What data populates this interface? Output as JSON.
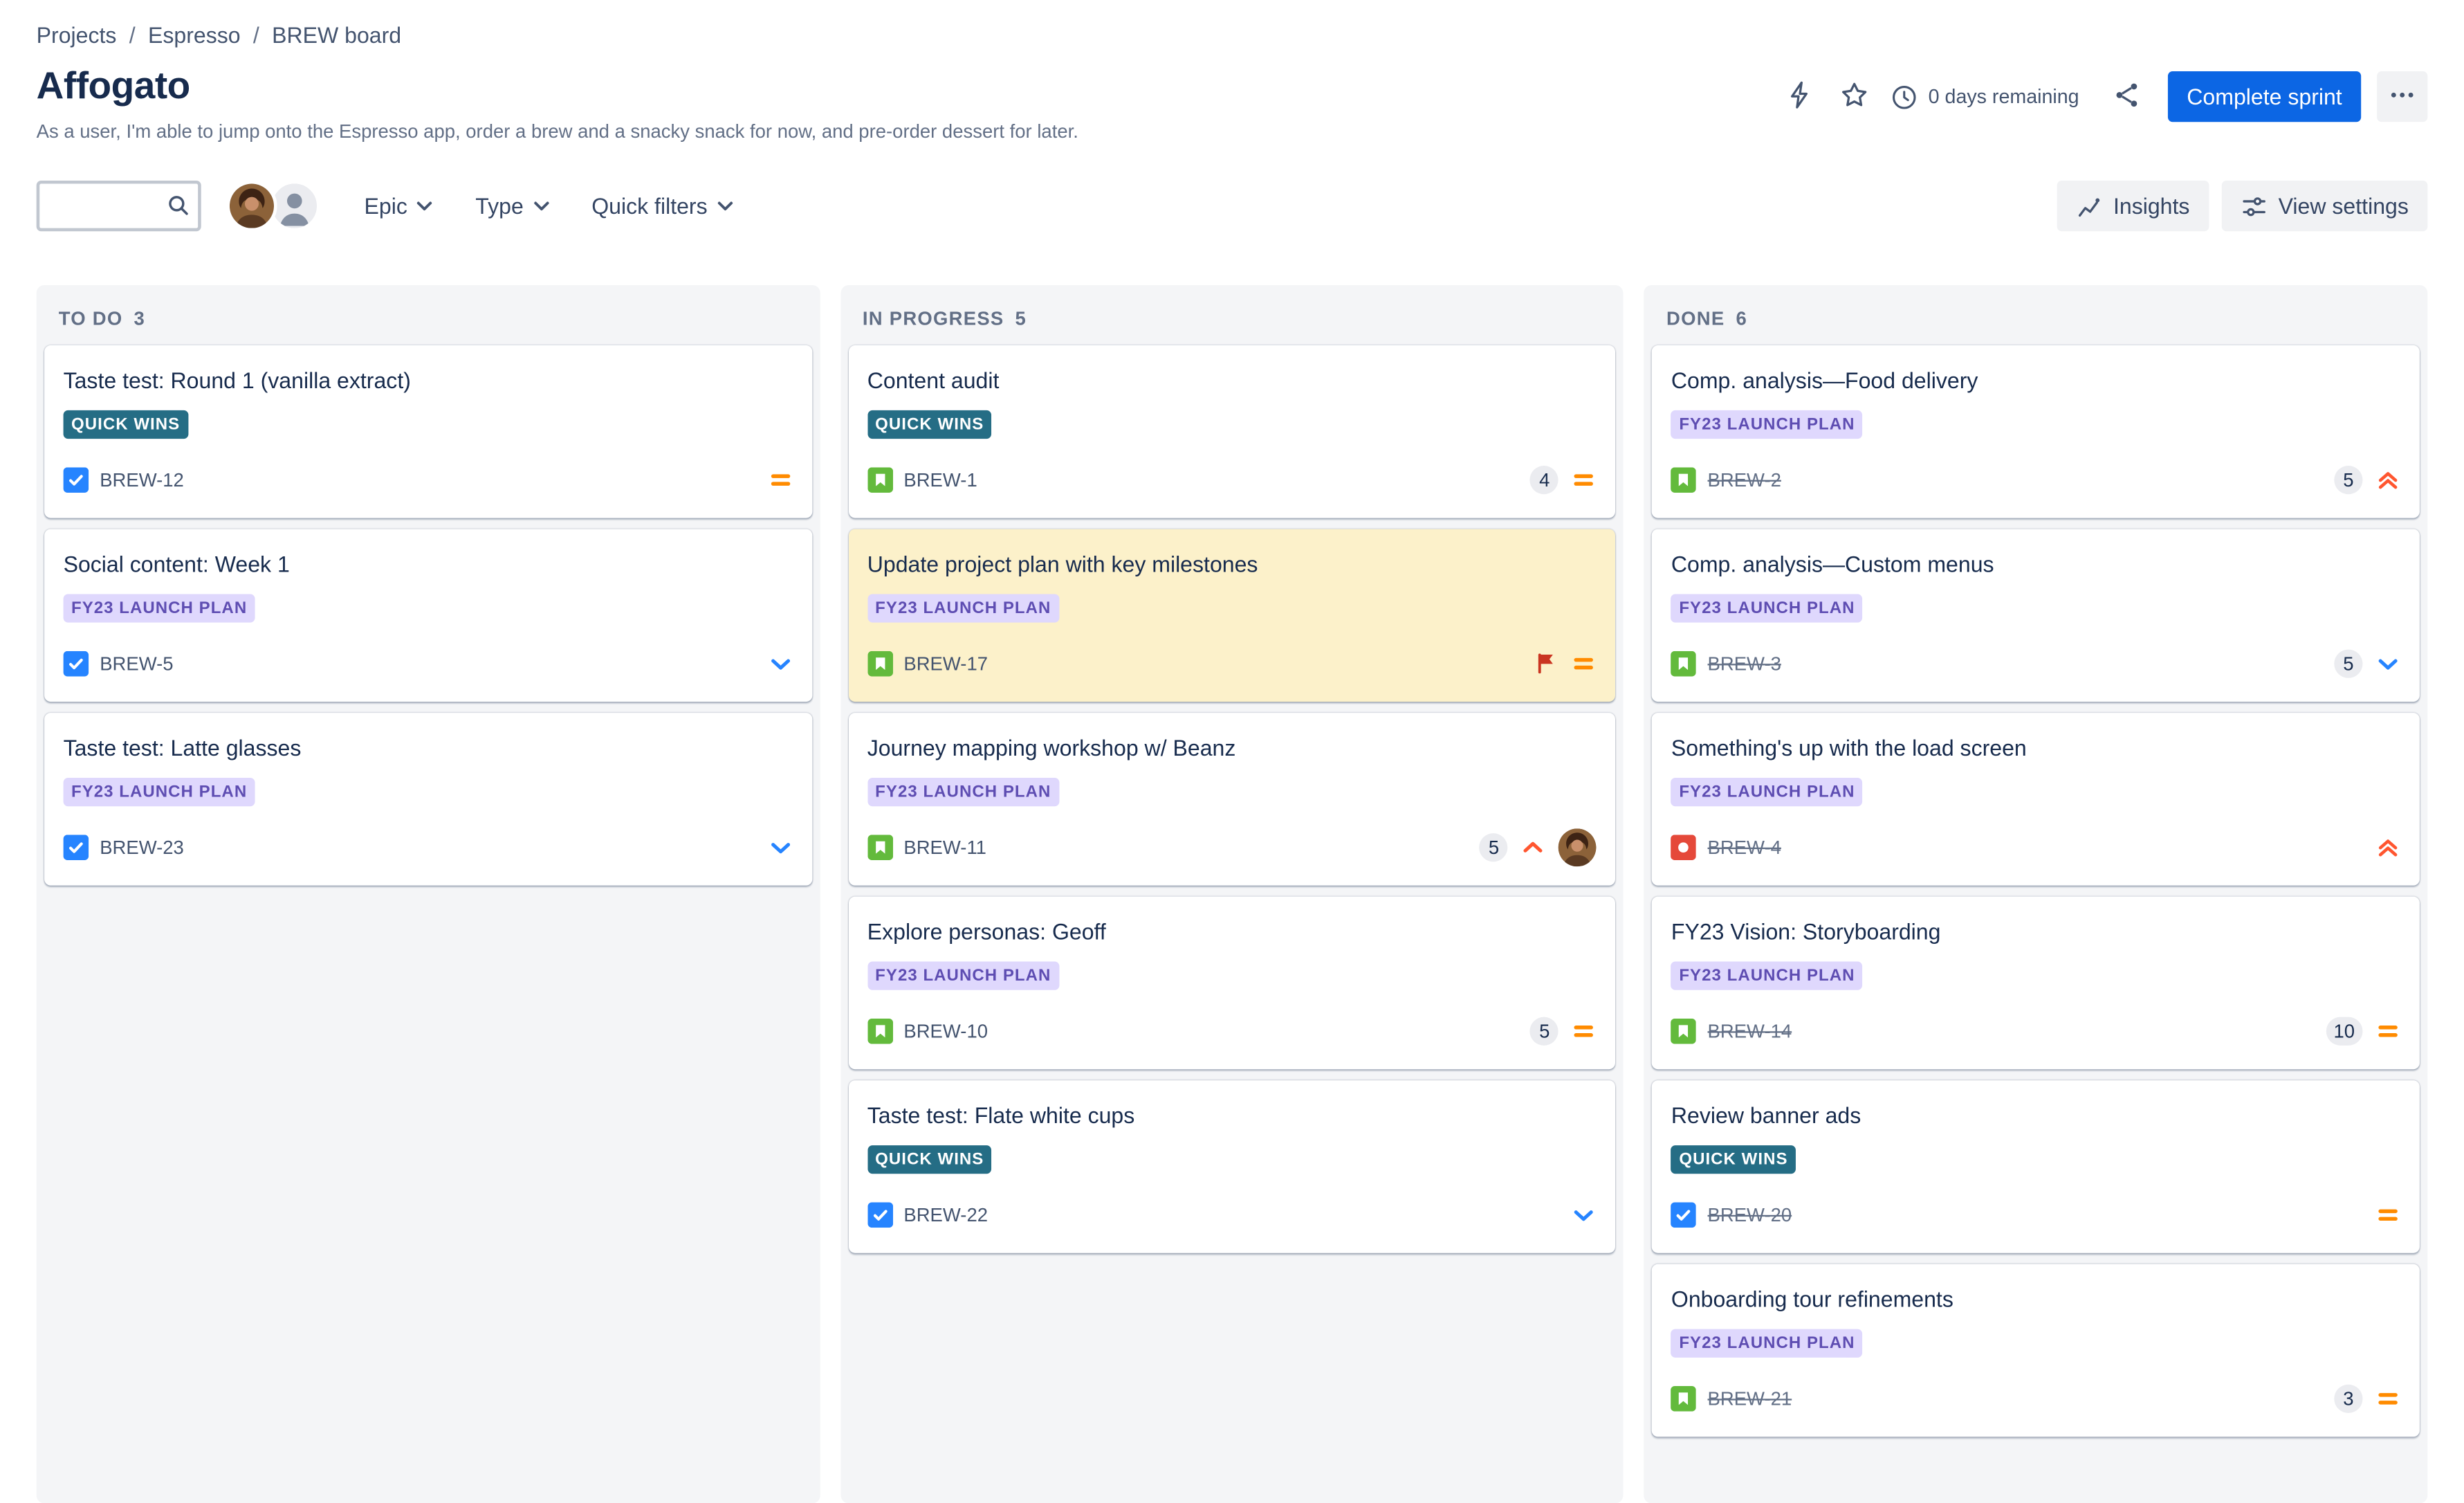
{
  "breadcrumb": {
    "separator": "/",
    "items": [
      "Projects",
      "Espresso",
      "BREW board"
    ]
  },
  "header": {
    "title": "Affogato",
    "description": "As a user, I'm able to jump onto the Espresso app, order a brew and a snacky snack for now, and pre-order dessert for later.",
    "days_remaining": "0 days remaining",
    "complete_sprint": "Complete sprint"
  },
  "toolbar": {
    "filters": [
      {
        "label": "Epic"
      },
      {
        "label": "Type"
      },
      {
        "label": "Quick filters"
      }
    ],
    "insights": "Insights",
    "view_settings": "View settings"
  },
  "colors": {
    "accent_blue": "#0C66E4",
    "icon_gray": "#44546F",
    "column_bg": "#F4F5F7",
    "flagged_card_bg": "#FCF1CA",
    "epic_quick_wins_bg": "#256D85",
    "epic_quick_wins_text": "#FFFFFF",
    "epic_fy23_bg": "#DFD8FD",
    "epic_fy23_text": "#5E4DB2",
    "task_blue": "#2684FF",
    "story_green": "#63BA3C",
    "bug_red": "#E5493A",
    "priority_medium": "#FF8B00",
    "priority_low": "#2684FF",
    "priority_high": "#FF5630",
    "flag_red": "#CA3521"
  },
  "columns": [
    {
      "title": "TO DO",
      "count": "3",
      "cards": [
        {
          "title": "Taste test: Round 1 (vanilla extract)",
          "epic": "QUICK WINS",
          "epic_style": "teal",
          "key": "BREW-12",
          "type": "task",
          "priority": "medium",
          "estimate": null,
          "done": false,
          "flagged": false,
          "avatar": false,
          "highlighted": false
        },
        {
          "title": "Social content: Week 1",
          "epic": "FY23 LAUNCH PLAN",
          "epic_style": "purple",
          "key": "BREW-5",
          "type": "task",
          "priority": "low",
          "estimate": null,
          "done": false,
          "flagged": false,
          "avatar": false,
          "highlighted": false
        },
        {
          "title": "Taste test: Latte glasses",
          "epic": "FY23 LAUNCH PLAN",
          "epic_style": "purple",
          "key": "BREW-23",
          "type": "task",
          "priority": "low",
          "estimate": null,
          "done": false,
          "flagged": false,
          "avatar": false,
          "highlighted": false
        }
      ]
    },
    {
      "title": "IN PROGRESS",
      "count": "5",
      "cards": [
        {
          "title": "Content audit",
          "epic": "QUICK WINS",
          "epic_style": "teal",
          "key": "BREW-1",
          "type": "story",
          "priority": "medium",
          "estimate": "4",
          "done": false,
          "flagged": false,
          "avatar": false,
          "highlighted": false
        },
        {
          "title": "Update project plan with key milestones",
          "epic": "FY23 LAUNCH PLAN",
          "epic_style": "purple",
          "key": "BREW-17",
          "type": "story",
          "priority": "medium",
          "estimate": null,
          "done": false,
          "flagged": true,
          "avatar": false,
          "highlighted": true
        },
        {
          "title": "Journey mapping workshop w/ Beanz",
          "epic": "FY23 LAUNCH PLAN",
          "epic_style": "purple",
          "key": "BREW-11",
          "type": "story",
          "priority": "high",
          "estimate": "5",
          "done": false,
          "flagged": false,
          "avatar": true,
          "highlighted": false
        },
        {
          "title": "Explore personas: Geoff",
          "epic": "FY23 LAUNCH PLAN",
          "epic_style": "purple",
          "key": "BREW-10",
          "type": "story",
          "priority": "medium",
          "estimate": "5",
          "done": false,
          "flagged": false,
          "avatar": false,
          "highlighted": false
        },
        {
          "title": "Taste test: Flate white cups",
          "epic": "QUICK WINS",
          "epic_style": "teal",
          "key": "BREW-22",
          "type": "task",
          "priority": "low",
          "estimate": null,
          "done": false,
          "flagged": false,
          "avatar": false,
          "highlighted": false
        }
      ]
    },
    {
      "title": "DONE",
      "count": "6",
      "cards": [
        {
          "title": "Comp. analysis—Food delivery",
          "epic": "FY23 LAUNCH PLAN",
          "epic_style": "purple",
          "key": "BREW-2",
          "type": "story",
          "priority": "highest",
          "estimate": "5",
          "done": true,
          "flagged": false,
          "avatar": false,
          "highlighted": false
        },
        {
          "title": "Comp. analysis—Custom menus",
          "epic": "FY23 LAUNCH PLAN",
          "epic_style": "purple",
          "key": "BREW-3",
          "type": "story",
          "priority": "low",
          "estimate": "5",
          "done": true,
          "flagged": false,
          "avatar": false,
          "highlighted": false
        },
        {
          "title": "Something's up with the load screen",
          "epic": "FY23 LAUNCH PLAN",
          "epic_style": "purple",
          "key": "BREW-4",
          "type": "bug",
          "priority": "highest",
          "estimate": null,
          "done": true,
          "flagged": false,
          "avatar": false,
          "highlighted": false
        },
        {
          "title": "FY23 Vision: Storyboarding",
          "epic": "FY23 LAUNCH PLAN",
          "epic_style": "purple",
          "key": "BREW-14",
          "type": "story",
          "priority": "medium",
          "estimate": "10",
          "done": true,
          "flagged": false,
          "avatar": false,
          "highlighted": false
        },
        {
          "title": "Review banner ads",
          "epic": "QUICK WINS",
          "epic_style": "teal",
          "key": "BREW-20",
          "type": "task",
          "priority": "medium",
          "estimate": null,
          "done": true,
          "flagged": false,
          "avatar": false,
          "highlighted": false
        },
        {
          "title": "Onboarding tour refinements",
          "epic": "FY23 LAUNCH PLAN",
          "epic_style": "purple",
          "key": "BREW-21",
          "type": "story",
          "priority": "medium",
          "estimate": "3",
          "done": true,
          "flagged": false,
          "avatar": false,
          "highlighted": false
        }
      ]
    }
  ]
}
